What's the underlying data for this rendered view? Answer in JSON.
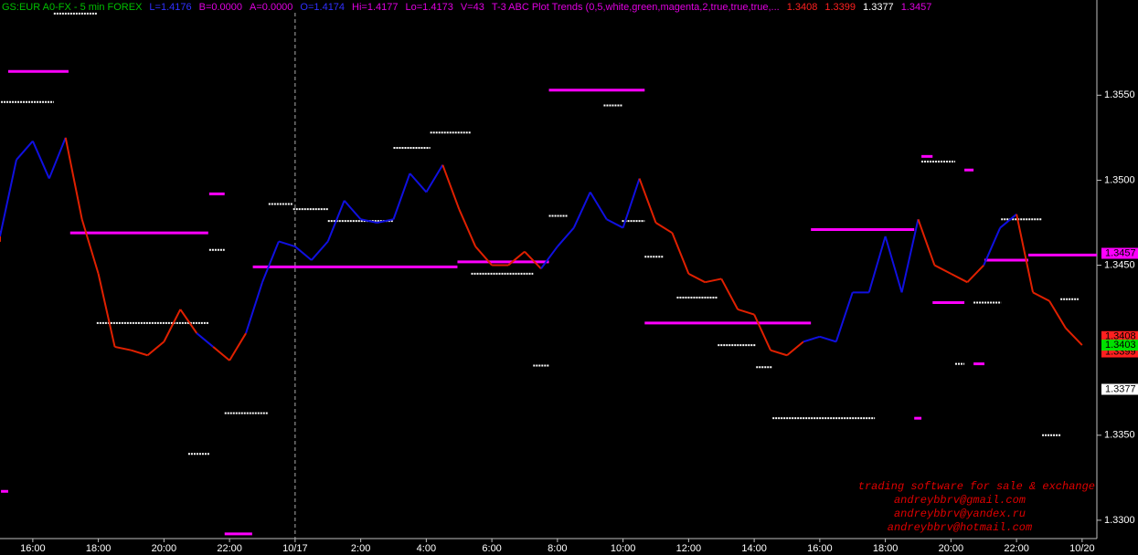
{
  "header": [
    {
      "text": "GS:EUR A0-FX - 5 min  FOREX",
      "color": "#00c000"
    },
    {
      "text": "L=1.4176",
      "color": "#3030ff"
    },
    {
      "text": "B=0.0000",
      "color": "#e000e0"
    },
    {
      "text": "A=0.0000",
      "color": "#e000e0"
    },
    {
      "text": "O=1.4174",
      "color": "#3030ff"
    },
    {
      "text": "Hi=1.4177",
      "color": "#e000e0"
    },
    {
      "text": "Lo=1.4173",
      "color": "#e000e0"
    },
    {
      "text": "V=43",
      "color": "#e000e0"
    },
    {
      "text": "T-3 ABC Plot Trends (0,5,white,green,magenta,2,true,true,true,...",
      "color": "#e000e0"
    },
    {
      "text": "1.3408",
      "color": "#ff2020"
    },
    {
      "text": "1.3399",
      "color": "#ff2020"
    },
    {
      "text": "1.3377",
      "color": "#ffffff"
    },
    {
      "text": "1.3457",
      "color": "#e000e0"
    }
  ],
  "watermark": [
    "trading software for sale & exchange",
    "andreybbrv@gmail.com",
    "andreybbrv@yandex.ru",
    "andreybbrv@hotmail.com"
  ],
  "chart_data": {
    "type": "line",
    "xlim": [
      15,
      48.45
    ],
    "ylim": [
      1.3286,
      1.3606
    ],
    "xticks": [
      {
        "value": 16,
        "label": "16:00"
      },
      {
        "value": 18,
        "label": "18:00"
      },
      {
        "value": 20,
        "label": "20:00"
      },
      {
        "value": 22,
        "label": "22:00"
      },
      {
        "value": 24,
        "label": "10/17"
      },
      {
        "value": 26,
        "label": "2:00"
      },
      {
        "value": 28,
        "label": "4:00"
      },
      {
        "value": 30,
        "label": "6:00"
      },
      {
        "value": 32,
        "label": "8:00"
      },
      {
        "value": 34,
        "label": "10:00"
      },
      {
        "value": 36,
        "label": "12:00"
      },
      {
        "value": 38,
        "label": "14:00"
      },
      {
        "value": 40,
        "label": "16:00"
      },
      {
        "value": 42,
        "label": "18:00"
      },
      {
        "value": 44,
        "label": "20:00"
      },
      {
        "value": 46,
        "label": "22:00"
      },
      {
        "value": 48,
        "label": "10/20"
      }
    ],
    "yticks": [
      {
        "value": 1.355,
        "label": "1.3550"
      },
      {
        "value": 1.35,
        "label": "1.3500"
      },
      {
        "value": 1.345,
        "label": "1.3450"
      },
      {
        "value": 1.335,
        "label": "1.3350"
      },
      {
        "value": 1.33,
        "label": "1.3300"
      }
    ],
    "session_break": 24,
    "x": [
      15,
      15.5,
      16,
      16.5,
      17,
      17.5,
      18,
      18.5,
      19,
      19.5,
      20,
      20.5,
      21,
      21.5,
      22,
      22.5,
      23,
      23.5,
      24,
      24.5,
      25,
      25.5,
      26,
      26.5,
      27,
      27.5,
      28,
      28.5,
      29,
      29.5,
      30,
      30.5,
      31,
      31.5,
      32,
      32.5,
      33,
      33.5,
      34,
      34.5,
      35,
      35.5,
      36,
      36.5,
      37,
      37.5,
      38,
      38.5,
      39,
      39.5,
      40,
      40.5,
      41,
      41.5,
      42,
      42.5,
      43,
      43.5,
      44,
      44.5,
      45,
      45.5,
      46,
      46.5,
      47,
      47.5,
      48
    ],
    "values": [
      1.3467,
      1.3512,
      1.3523,
      1.3501,
      1.3525,
      1.3477,
      1.3445,
      1.3402,
      1.34,
      1.3397,
      1.3405,
      1.3424,
      1.341,
      1.3402,
      1.3394,
      1.341,
      1.344,
      1.3464,
      1.3461,
      1.3453,
      1.3464,
      1.3488,
      1.3477,
      1.3475,
      1.3477,
      1.3504,
      1.3493,
      1.3509,
      1.3483,
      1.3461,
      1.345,
      1.345,
      1.3458,
      1.3448,
      1.3461,
      1.3472,
      1.3493,
      1.3477,
      1.3472,
      1.3501,
      1.3475,
      1.3469,
      1.3445,
      1.344,
      1.3442,
      1.3424,
      1.3421,
      1.34,
      1.3397,
      1.3405,
      1.3408,
      1.3405,
      1.3434,
      1.3434,
      1.3467,
      1.3434,
      1.3477,
      1.345,
      1.3445,
      1.344,
      1.345,
      1.3472,
      1.348,
      1.3434,
      1.3429,
      1.3413,
      1.3403
    ],
    "colors": [
      "#e02000",
      "#1010e0",
      "#1010e0",
      "#1010e0",
      "#1010e0",
      "#e02000",
      "#e02000",
      "#e02000",
      "#e02000",
      "#e02000",
      "#e02000",
      "#e02000",
      "#e02000",
      "#1010e0",
      "#e02000",
      "#e02000",
      "#1010e0",
      "#1010e0",
      "#1010e0",
      "#1010e0",
      "#1010e0",
      "#1010e0",
      "#1010e0",
      "#1010e0",
      "#1010e0",
      "#1010e0",
      "#1010e0",
      "#1010e0",
      "#e02000",
      "#e02000",
      "#e02000",
      "#e02000",
      "#e02000",
      "#e02000",
      "#1010e0",
      "#1010e0",
      "#1010e0",
      "#1010e0",
      "#1010e0",
      "#1010e0",
      "#e02000",
      "#e02000",
      "#e02000",
      "#e02000",
      "#e02000",
      "#e02000",
      "#e02000",
      "#e02000",
      "#e02000",
      "#e02000",
      "#1010e0",
      "#1010e0",
      "#1010e0",
      "#1010e0",
      "#1010e0",
      "#1010e0",
      "#1010e0",
      "#e02000",
      "#e02000",
      "#e02000",
      "#e02000",
      "#1010e0",
      "#1010e0",
      "#e02000",
      "#e02000",
      "#e02000",
      "#e02000"
    ],
    "levels": [
      {
        "x0": 15.25,
        "x1": 17.09,
        "y": 1.3564,
        "color": "#ff00ff"
      },
      {
        "x0": 17.14,
        "x1": 21.35,
        "y": 1.3469,
        "color": "#ff00ff"
      },
      {
        "x0": 21.38,
        "x1": 21.85,
        "y": 1.3492,
        "color": "#ff00ff"
      },
      {
        "x0": 22.71,
        "x1": 28.95,
        "y": 1.3449,
        "color": "#ff00ff"
      },
      {
        "x0": 28.95,
        "x1": 31.74,
        "y": 1.3452,
        "color": "#ff00ff"
      },
      {
        "x0": 31.74,
        "x1": 34.66,
        "y": 1.3553,
        "color": "#ff00ff"
      },
      {
        "x0": 34.66,
        "x1": 39.73,
        "y": 1.3416,
        "color": "#ff00ff"
      },
      {
        "x0": 39.73,
        "x1": 42.88,
        "y": 1.3471,
        "color": "#ff00ff"
      },
      {
        "x0": 43.1,
        "x1": 43.44,
        "y": 1.3514,
        "color": "#ff00ff"
      },
      {
        "x0": 43.44,
        "x1": 44.41,
        "y": 1.3428,
        "color": "#ff00ff"
      },
      {
        "x0": 44.41,
        "x1": 44.69,
        "y": 1.3506,
        "color": "#ff00ff"
      },
      {
        "x0": 44.69,
        "x1": 45.02,
        "y": 1.3392,
        "color": "#ff00ff"
      },
      {
        "x0": 45.02,
        "x1": 46.36,
        "y": 1.3453,
        "color": "#ff00ff"
      },
      {
        "x0": 46.36,
        "x1": 48.45,
        "y": 1.3456,
        "color": "#ff00ff"
      },
      {
        "x0": 15.03,
        "x1": 15.25,
        "y": 1.3317,
        "color": "#ff00ff"
      },
      {
        "x0": 21.85,
        "x1": 22.69,
        "y": 1.3292,
        "color": "#ff00ff"
      },
      {
        "x0": 42.88,
        "x1": 43.1,
        "y": 1.336,
        "color": "#ff00ff"
      },
      {
        "x0": 15.03,
        "x1": 16.64,
        "y": 1.3546,
        "color": "#ffffff"
      },
      {
        "x0": 16.64,
        "x1": 17.95,
        "y": 1.3598,
        "color": "#ffffff"
      },
      {
        "x0": 17.95,
        "x1": 21.38,
        "y": 1.3416,
        "color": "#ffffff"
      },
      {
        "x0": 21.38,
        "x1": 21.85,
        "y": 1.3459,
        "color": "#ffffff"
      },
      {
        "x0": 21.85,
        "x1": 23.19,
        "y": 1.3363,
        "color": "#ffffff"
      },
      {
        "x0": 20.74,
        "x1": 21.38,
        "y": 1.3339,
        "color": "#ffffff"
      },
      {
        "x0": 23.19,
        "x1": 23.94,
        "y": 1.3486,
        "color": "#ffffff"
      },
      {
        "x0": 23.94,
        "x1": 25.0,
        "y": 1.3483,
        "color": "#ffffff"
      },
      {
        "x0": 25.0,
        "x1": 27.0,
        "y": 1.3476,
        "color": "#ffffff"
      },
      {
        "x0": 27.0,
        "x1": 28.12,
        "y": 1.3519,
        "color": "#ffffff"
      },
      {
        "x0": 28.12,
        "x1": 29.37,
        "y": 1.3528,
        "color": "#ffffff"
      },
      {
        "x0": 29.37,
        "x1": 31.26,
        "y": 1.3445,
        "color": "#ffffff"
      },
      {
        "x0": 31.26,
        "x1": 31.74,
        "y": 1.3391,
        "color": "#ffffff"
      },
      {
        "x0": 31.74,
        "x1": 32.3,
        "y": 1.3479,
        "color": "#ffffff"
      },
      {
        "x0": 33.41,
        "x1": 33.97,
        "y": 1.3544,
        "color": "#ffffff"
      },
      {
        "x0": 33.97,
        "x1": 34.66,
        "y": 1.3476,
        "color": "#ffffff"
      },
      {
        "x0": 34.66,
        "x1": 35.22,
        "y": 1.3455,
        "color": "#ffffff"
      },
      {
        "x0": 35.64,
        "x1": 36.89,
        "y": 1.3431,
        "color": "#ffffff"
      },
      {
        "x0": 36.89,
        "x1": 38.06,
        "y": 1.3403,
        "color": "#ffffff"
      },
      {
        "x0": 38.06,
        "x1": 38.56,
        "y": 1.339,
        "color": "#ffffff"
      },
      {
        "x0": 38.56,
        "x1": 41.68,
        "y": 1.336,
        "color": "#ffffff"
      },
      {
        "x0": 43.1,
        "x1": 44.13,
        "y": 1.3511,
        "color": "#ffffff"
      },
      {
        "x0": 44.13,
        "x1": 44.41,
        "y": 1.3392,
        "color": "#ffffff"
      },
      {
        "x0": 44.69,
        "x1": 45.53,
        "y": 1.3428,
        "color": "#ffffff"
      },
      {
        "x0": 45.53,
        "x1": 46.78,
        "y": 1.3477,
        "color": "#ffffff"
      },
      {
        "x0": 46.78,
        "x1": 47.34,
        "y": 1.335,
        "color": "#ffffff"
      },
      {
        "x0": 47.34,
        "x1": 47.89,
        "y": 1.343,
        "color": "#ffffff"
      }
    ],
    "price_markers": [
      {
        "value": 1.3457,
        "color": "#ff00ff",
        "text_color": "#000000"
      },
      {
        "value": 1.3408,
        "color": "#ff2020",
        "text_color": "#000000"
      },
      {
        "value": 1.3399,
        "color": "#ff2020",
        "text_color": "#000000"
      },
      {
        "value": 1.3403,
        "color": "#00e000",
        "text_color": "#000000"
      },
      {
        "value": 1.3377,
        "color": "#ffffff",
        "text_color": "#000000"
      }
    ]
  }
}
